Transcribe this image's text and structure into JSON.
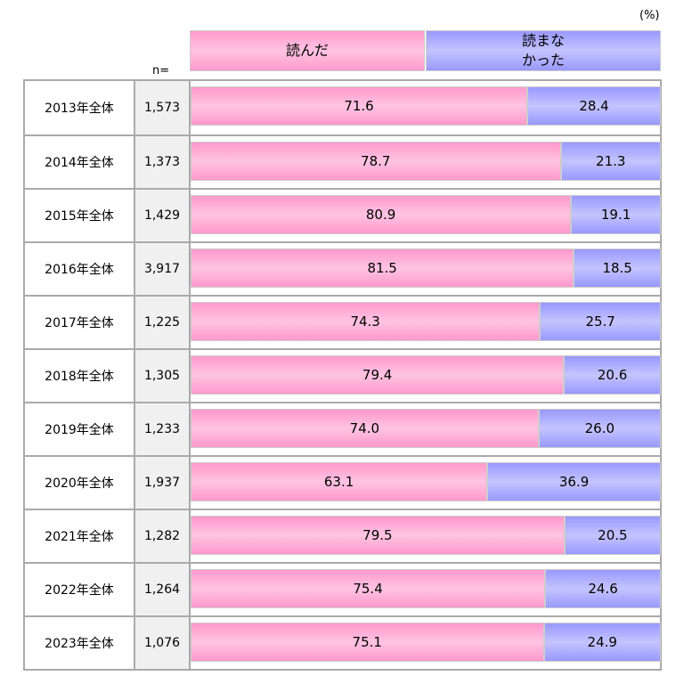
{
  "chart_data": {
    "type": "bar",
    "stacked": true,
    "orientation": "horizontal",
    "unit_label": "(%)",
    "n_label": "n=",
    "categories": [
      "2013年全体",
      "2014年全体",
      "2015年全体",
      "2016年全体",
      "2017年全体",
      "2018年全体",
      "2019年全体",
      "2020年全体",
      "2021年全体",
      "2022年全体",
      "2023年全体"
    ],
    "n": [
      "1,573",
      "1,373",
      "1,429",
      "3,917",
      "1,225",
      "1,305",
      "1,233",
      "1,937",
      "1,282",
      "1,264",
      "1,076"
    ],
    "series": [
      {
        "name": "読んだ",
        "color": "#ff99cc",
        "values": [
          71.6,
          78.7,
          80.9,
          81.5,
          74.3,
          79.4,
          74.0,
          63.1,
          79.5,
          75.4,
          75.1
        ]
      },
      {
        "name": "読まなかった",
        "color": "#9999ff",
        "values": [
          28.4,
          21.3,
          19.1,
          18.5,
          25.7,
          20.6,
          26.0,
          36.9,
          20.5,
          24.6,
          24.9
        ]
      }
    ],
    "legend_lines": {
      "read": "読んだ",
      "not_read_1": "読まな",
      "not_read_2": "かった"
    },
    "xlim": [
      0,
      100
    ]
  }
}
